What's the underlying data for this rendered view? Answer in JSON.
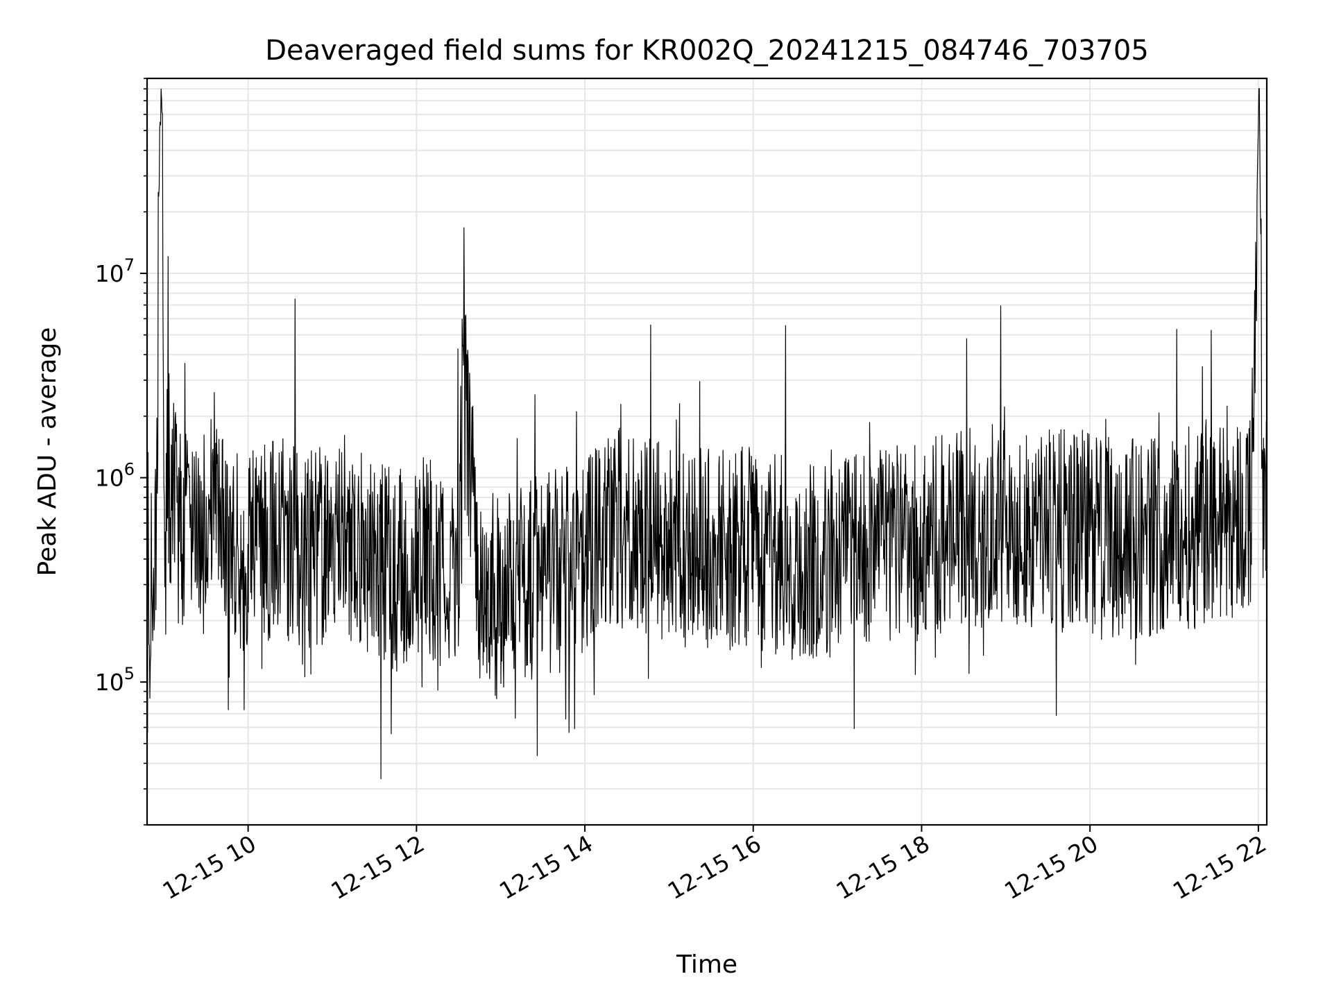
{
  "chart_data": {
    "type": "line",
    "title": "Deaveraged field sums for KR002Q_20241215_084746_703705",
    "xlabel": "Time",
    "ylabel": "Peak ADU - average",
    "x_range": [
      "2024-12-15 08:48",
      "2024-12-15 22:06"
    ],
    "y_scale": "log",
    "ylim": [
      20000,
      90000000
    ],
    "grid": true,
    "line_color": "#000000",
    "x_ticks": [
      {
        "value": "2024-12-15 10:00",
        "label": "12-15 10"
      },
      {
        "value": "2024-12-15 12:00",
        "label": "12-15 12"
      },
      {
        "value": "2024-12-15 14:00",
        "label": "12-15 14"
      },
      {
        "value": "2024-12-15 16:00",
        "label": "12-15 16"
      },
      {
        "value": "2024-12-15 18:00",
        "label": "12-15 18"
      },
      {
        "value": "2024-12-15 20:00",
        "label": "12-15 20"
      },
      {
        "value": "2024-12-15 22:00",
        "label": "12-15 22"
      }
    ],
    "y_ticks": [
      {
        "value": 100000,
        "base": "10",
        "exponent": "5"
      },
      {
        "value": 1000000,
        "base": "10",
        "exponent": "6"
      },
      {
        "value": 10000000,
        "base": "10",
        "exponent": "7"
      }
    ],
    "series": [
      {
        "x": [
          "2024-12-15 08:48",
          "2024-12-15 08:55",
          "2024-12-15 08:57",
          "2024-12-15 08:59",
          "2024-12-15 09:00",
          "2024-12-15 09:02",
          "2024-12-15 09:05",
          "2024-12-15 09:10",
          "2024-12-15 09:15",
          "2024-12-15 09:20",
          "2024-12-15 09:30",
          "2024-12-15 09:36",
          "2024-12-15 09:45",
          "2024-12-15 10:00",
          "2024-12-15 10:15",
          "2024-12-15 10:30",
          "2024-12-15 10:45",
          "2024-12-15 11:00",
          "2024-12-15 11:07",
          "2024-12-15 11:15",
          "2024-12-15 11:30",
          "2024-12-15 11:45",
          "2024-12-15 12:00",
          "2024-12-15 12:05",
          "2024-12-15 12:15",
          "2024-12-15 12:30",
          "2024-12-15 12:33",
          "2024-12-15 12:45",
          "2024-12-15 13:00",
          "2024-12-15 13:08",
          "2024-12-15 13:15",
          "2024-12-15 13:30",
          "2024-12-15 13:45",
          "2024-12-15 14:00",
          "2024-12-15 14:15",
          "2024-12-15 14:30",
          "2024-12-15 15:00",
          "2024-12-15 15:30",
          "2024-12-15 16:00",
          "2024-12-15 16:30",
          "2024-12-15 17:00",
          "2024-12-15 17:30",
          "2024-12-15 18:00",
          "2024-12-15 18:30",
          "2024-12-15 19:00",
          "2024-12-15 19:30",
          "2024-12-15 20:00",
          "2024-12-15 20:30",
          "2024-12-15 21:00",
          "2024-12-15 21:30",
          "2024-12-15 21:55",
          "2024-12-15 22:00",
          "2024-12-15 22:01",
          "2024-12-15 22:03",
          "2024-12-15 22:06"
        ],
        "y": [
          150000,
          700000,
          55000000,
          62000000,
          700000,
          1200000,
          900000,
          600000,
          500000,
          700000,
          450000,
          1500000,
          400000,
          450000,
          500000,
          500000,
          450000,
          500000,
          600000,
          450000,
          400000,
          350000,
          400000,
          500000,
          350000,
          300000,
          4000000,
          300000,
          250000,
          300000,
          300000,
          350000,
          350000,
          450000,
          600000,
          550000,
          500000,
          450000,
          450000,
          400000,
          400000,
          450000,
          500000,
          550000,
          600000,
          550000,
          550000,
          500000,
          550000,
          600000,
          700000,
          55000000,
          45000000,
          800000,
          900000
        ]
      }
    ]
  }
}
